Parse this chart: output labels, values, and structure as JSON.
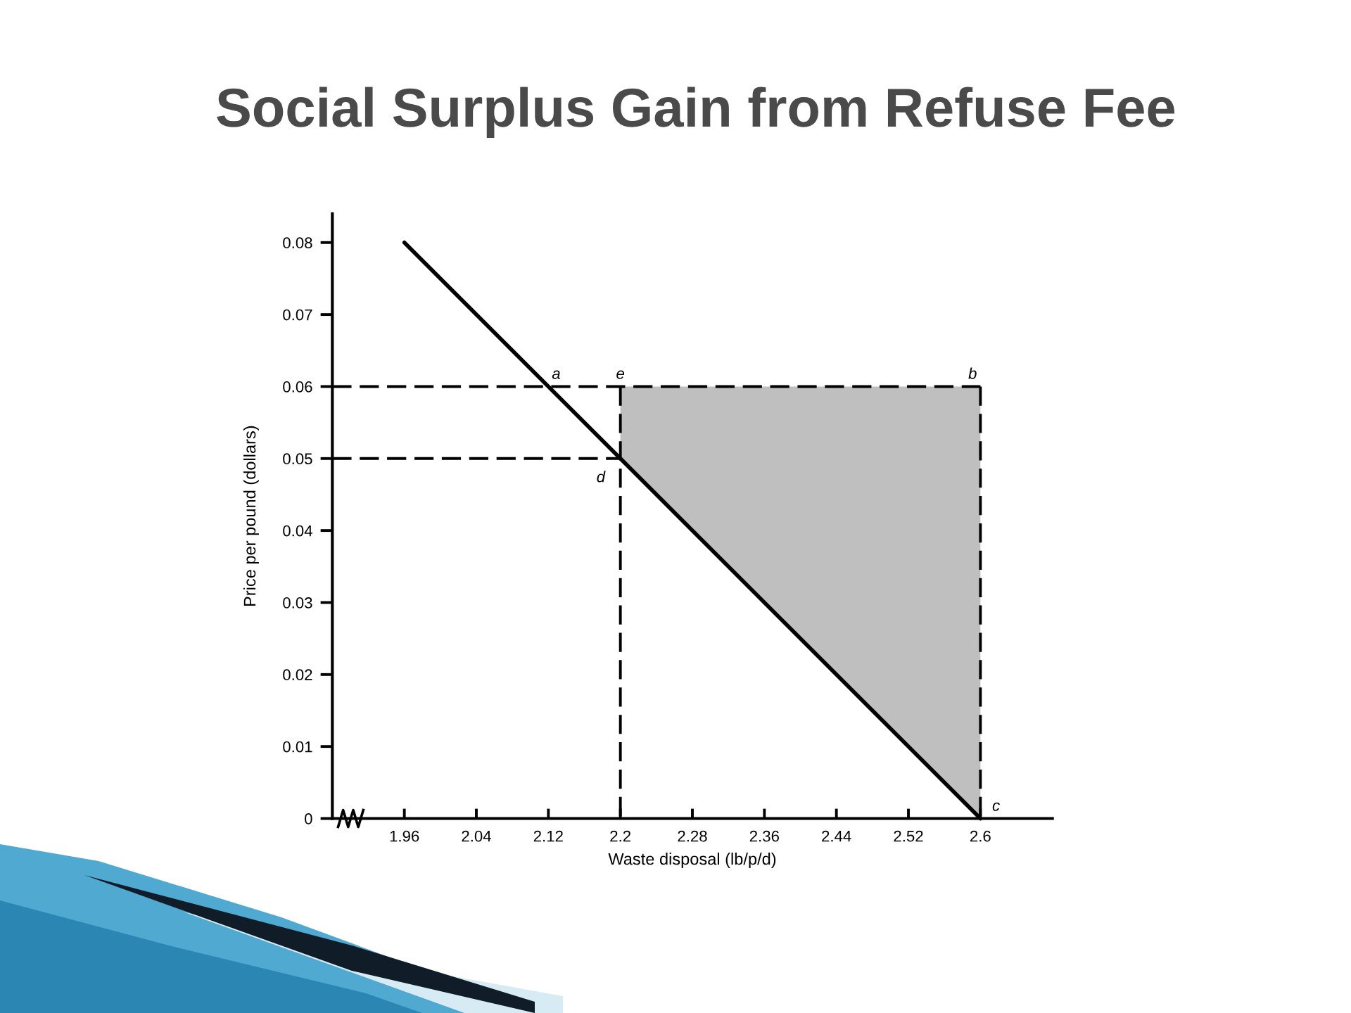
{
  "chart_data": {
    "type": "line",
    "title": "Social Surplus Gain from Refuse Fee",
    "xlabel": "Waste disposal (lb/p/d)",
    "ylabel": "Price per pound (dollars)",
    "xlim": [
      1.88,
      2.68
    ],
    "ylim": [
      0,
      0.084
    ],
    "xticks": [
      1.96,
      2.04,
      2.12,
      2.2,
      2.28,
      2.36,
      2.44,
      2.52,
      2.6
    ],
    "yticks": [
      0,
      0.01,
      0.02,
      0.03,
      0.04,
      0.05,
      0.06,
      0.07,
      0.08
    ],
    "series": [
      {
        "color": "#000000",
        "line_style": "solid",
        "x": [
          1.96,
          2.2,
          2.6
        ],
        "values": [
          0.08,
          0.05,
          0
        ],
        "lower": [
          null,
          0.05,
          0
        ],
        "upper": [
          null,
          0.06,
          0.06
        ]
      },
      {
        "color": "#000000",
        "line_style": "dashed",
        "x": [
          1.88,
          2.6
        ],
        "values": [
          0.06,
          0.06
        ]
      },
      {
        "color": "#000000",
        "line_style": "dashed",
        "x": [
          1.88,
          2.2
        ],
        "values": [
          0.05,
          0.05
        ]
      }
    ],
    "ref_lines": [
      {
        "axis": "x",
        "value": 2.2,
        "color": "#000000",
        "line_style": "dashed"
      },
      {
        "axis": "x",
        "value": 2.6,
        "color": "#000000",
        "line_style": "dashed"
      }
    ],
    "annotations": [
      {
        "text": "a",
        "x": 2.12,
        "y": 0.06
      },
      {
        "text": "e",
        "x": 2.2,
        "y": 0.06
      },
      {
        "text": "b",
        "x": 2.6,
        "y": 0.06
      },
      {
        "text": "d",
        "x": 2.2,
        "y": 0.05
      },
      {
        "text": "c",
        "x": 2.6,
        "y": 0
      }
    ]
  }
}
